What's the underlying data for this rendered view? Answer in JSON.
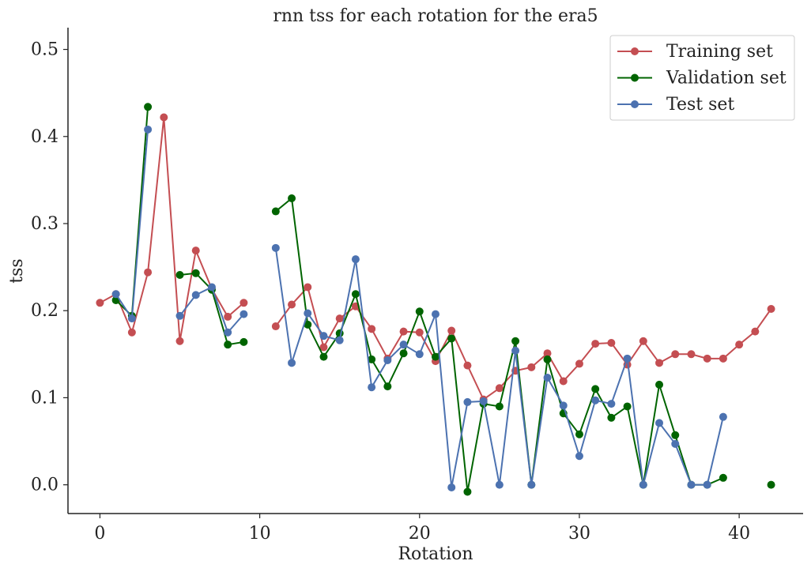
{
  "chart_data": {
    "type": "line",
    "title": "rnn tss for each rotation for the era5",
    "xlabel": "Rotation",
    "ylabel": "tss",
    "xlim": [
      -2,
      44
    ],
    "ylim": [
      -0.033,
      0.525
    ],
    "xticks": [
      0,
      10,
      20,
      30,
      40
    ],
    "yticks": [
      0.0,
      0.1,
      0.2,
      0.3,
      0.4,
      0.5
    ],
    "ytick_labels": [
      "0.0",
      "0.1",
      "0.2",
      "0.3",
      "0.4",
      "0.5"
    ],
    "grid": false,
    "legend_position": "top-right",
    "series": [
      {
        "name": "Training set",
        "color": "#c44e52",
        "x": [
          0,
          1,
          2,
          3,
          4,
          5,
          6,
          7,
          8,
          9,
          null,
          11,
          12,
          13,
          14,
          15,
          16,
          17,
          18,
          19,
          20,
          21,
          22,
          23,
          24,
          25,
          26,
          27,
          28,
          29,
          30,
          31,
          32,
          33,
          34,
          35,
          36,
          37,
          38,
          39,
          40,
          41,
          42
        ],
        "y": [
          0.209,
          0.219,
          0.175,
          0.244,
          0.422,
          0.165,
          0.269,
          0.225,
          0.193,
          0.209,
          null,
          0.182,
          0.207,
          0.227,
          0.158,
          0.191,
          0.205,
          0.179,
          0.145,
          0.176,
          0.175,
          0.142,
          0.177,
          0.137,
          0.098,
          0.111,
          0.131,
          0.135,
          0.151,
          0.119,
          0.139,
          0.162,
          0.163,
          0.138,
          0.165,
          0.14,
          0.15,
          0.15,
          0.145,
          0.145,
          0.161,
          0.176,
          0.202
        ]
      },
      {
        "name": "Validation set",
        "color": "#006400",
        "x": [
          1,
          2,
          3,
          null,
          5,
          6,
          7,
          8,
          9,
          null,
          11,
          12,
          13,
          14,
          15,
          16,
          17,
          18,
          19,
          20,
          21,
          22,
          23,
          24,
          25,
          26,
          27,
          28,
          29,
          30,
          31,
          32,
          33,
          34,
          35,
          36,
          37,
          38,
          39,
          null,
          42
        ],
        "y": [
          0.212,
          0.194,
          0.434,
          null,
          0.241,
          0.243,
          0.224,
          0.161,
          0.164,
          null,
          0.314,
          0.329,
          0.184,
          0.147,
          0.174,
          0.219,
          0.144,
          0.113,
          0.151,
          0.199,
          0.147,
          0.168,
          -0.008,
          0.093,
          0.09,
          0.165,
          0.0,
          0.144,
          0.082,
          0.058,
          0.11,
          0.077,
          0.09,
          0.0,
          0.115,
          0.057,
          0.0,
          0.0,
          0.008,
          null,
          0.0
        ]
      },
      {
        "name": "Test set",
        "color": "#4c72b0",
        "x": [
          1,
          2,
          3,
          null,
          5,
          6,
          7,
          8,
          9,
          null,
          11,
          12,
          13,
          14,
          15,
          16,
          17,
          18,
          19,
          20,
          21,
          22,
          23,
          24,
          25,
          26,
          27,
          28,
          29,
          30,
          31,
          32,
          33,
          34,
          35,
          36,
          37,
          38,
          39
        ],
        "y": [
          0.219,
          0.191,
          0.408,
          null,
          0.194,
          0.218,
          0.227,
          0.175,
          0.196,
          null,
          0.272,
          0.14,
          0.197,
          0.171,
          0.166,
          0.259,
          0.112,
          0.143,
          0.161,
          0.15,
          0.196,
          -0.003,
          0.095,
          0.096,
          0.0,
          0.154,
          0.0,
          0.123,
          0.091,
          0.033,
          0.097,
          0.093,
          0.145,
          0.0,
          0.071,
          0.047,
          0.0,
          0.0,
          0.078
        ]
      }
    ]
  }
}
